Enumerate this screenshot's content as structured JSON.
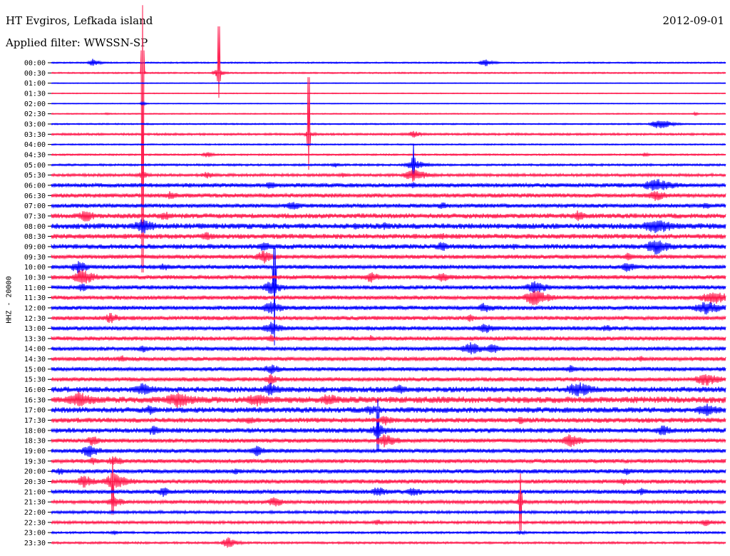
{
  "header": {
    "station": "HT Evgiros, Lefkada island",
    "date": "2012-09-01",
    "filter": "Applied filter: WWSSN-SP"
  },
  "chart_data": {
    "type": "line",
    "ylabel": "HHZ - 20000",
    "colors": [
      "#0000ff",
      "#ff1a4d"
    ],
    "tick_labels": [
      "00:00",
      "00:30",
      "01:00",
      "01:30",
      "02:00",
      "02:30",
      "03:00",
      "03:30",
      "04:00",
      "04:30",
      "05:00",
      "05:30",
      "06:00",
      "06:30",
      "07:00",
      "07:30",
      "08:00",
      "08:30",
      "09:00",
      "09:30",
      "10:00",
      "10:30",
      "11:00",
      "11:30",
      "12:00",
      "12:30",
      "13:00",
      "13:30",
      "14:00",
      "14:30",
      "15:00",
      "15:30",
      "16:00",
      "16:30",
      "17:00",
      "17:30",
      "18:00",
      "18:30",
      "19:00",
      "19:30",
      "20:00",
      "20:30",
      "21:00",
      "21:30",
      "22:00",
      "22:30",
      "23:00",
      "23:30"
    ],
    "noise_amplitude": [
      1,
      1,
      0.6,
      0.6,
      0.6,
      0.8,
      1,
      1.5,
      1,
      1.2,
      1.5,
      2,
      3,
      3,
      3,
      3.5,
      4,
      3.5,
      3.5,
      3,
      3,
      3,
      3,
      3,
      3,
      3,
      3,
      3,
      3,
      3,
      3,
      3,
      4,
      4.5,
      4,
      3.5,
      3.5,
      3,
      3,
      3,
      3,
      3,
      3,
      2.5,
      2,
      2,
      1.5,
      1.5
    ],
    "events": [
      [
        [
          130,
          6,
          10
        ],
        [
          680,
          6,
          12
        ]
      ],
      [
        [
          305,
          6,
          10
        ],
        [
          200,
          3,
          6
        ]
      ],
      [],
      [],
      [
        [
          200,
          3,
          6
        ]
      ],
      [
        [
          150,
          2,
          5
        ],
        [
          975,
          3,
          4
        ]
      ],
      [
        [
          925,
          8,
          18
        ]
      ],
      [
        [
          433,
          5,
          10
        ],
        [
          580,
          5,
          14
        ]
      ],
      [],
      [
        [
          290,
          5,
          10
        ],
        [
          905,
          4,
          6
        ]
      ],
      [
        [
          580,
          8,
          18
        ],
        [
          470,
          4,
          8
        ]
      ],
      [
        [
          580,
          10,
          20
        ],
        [
          200,
          6,
          12
        ],
        [
          290,
          6,
          12
        ],
        [
          480,
          4,
          10
        ]
      ],
      [
        [
          380,
          7,
          12
        ],
        [
          580,
          5,
          10
        ],
        [
          920,
          10,
          30
        ]
      ],
      [
        [
          240,
          7,
          14
        ],
        [
          920,
          8,
          20
        ]
      ],
      [
        [
          410,
          8,
          14
        ],
        [
          620,
          6,
          12
        ],
        [
          990,
          6,
          12
        ]
      ],
      [
        [
          120,
          10,
          16
        ],
        [
          230,
          8,
          14
        ],
        [
          810,
          8,
          16
        ]
      ],
      [
        [
          200,
          12,
          20
        ],
        [
          500,
          6,
          12
        ],
        [
          540,
          6,
          12
        ],
        [
          920,
          12,
          30
        ]
      ],
      [
        [
          290,
          7,
          14
        ],
        [
          620,
          6,
          12
        ]
      ],
      [
        [
          370,
          8,
          14
        ],
        [
          620,
          8,
          14
        ],
        [
          720,
          5,
          10
        ],
        [
          920,
          12,
          24
        ]
      ],
      [
        [
          370,
          10,
          18
        ],
        [
          880,
          6,
          12
        ]
      ],
      [
        [
          110,
          10,
          16
        ],
        [
          230,
          6,
          12
        ],
        [
          880,
          8,
          14
        ]
      ],
      [
        [
          115,
          12,
          22
        ],
        [
          520,
          8,
          16
        ],
        [
          620,
          8,
          16
        ]
      ],
      [
        [
          115,
          7,
          12
        ],
        [
          380,
          10,
          20
        ],
        [
          750,
          10,
          20
        ]
      ],
      [
        [
          320,
          4,
          8
        ],
        [
          750,
          12,
          24
        ],
        [
          1000,
          10,
          30
        ]
      ],
      [
        [
          380,
          10,
          20
        ],
        [
          680,
          8,
          16
        ],
        [
          990,
          10,
          30
        ]
      ],
      [
        [
          155,
          8,
          16
        ],
        [
          660,
          6,
          12
        ]
      ],
      [
        [
          380,
          10,
          18
        ],
        [
          680,
          8,
          16
        ],
        [
          850,
          6,
          12
        ]
      ],
      [
        [
          380,
          6,
          12
        ],
        [
          520,
          5,
          10
        ]
      ],
      [
        [
          200,
          6,
          12
        ],
        [
          660,
          10,
          20
        ],
        [
          690,
          8,
          16
        ]
      ],
      [
        [
          170,
          6,
          12
        ],
        [
          900,
          5,
          10
        ]
      ],
      [
        [
          380,
          8,
          16
        ],
        [
          800,
          6,
          12
        ]
      ],
      [
        [
          380,
          8,
          14
        ],
        [
          990,
          10,
          24
        ]
      ],
      [
        [
          200,
          10,
          22
        ],
        [
          380,
          10,
          20
        ],
        [
          560,
          8,
          16
        ],
        [
          810,
          12,
          26
        ]
      ],
      [
        [
          110,
          12,
          30
        ],
        [
          250,
          12,
          30
        ],
        [
          360,
          10,
          26
        ],
        [
          460,
          10,
          20
        ]
      ],
      [
        [
          210,
          8,
          14
        ],
        [
          520,
          8,
          16
        ],
        [
          990,
          10,
          24
        ]
      ],
      [
        [
          350,
          6,
          12
        ],
        [
          540,
          8,
          16
        ],
        [
          730,
          6,
          12
        ]
      ],
      [
        [
          215,
          8,
          16
        ],
        [
          530,
          10,
          20
        ],
        [
          930,
          8,
          18
        ]
      ],
      [
        [
          130,
          8,
          16
        ],
        [
          540,
          10,
          20
        ],
        [
          800,
          10,
          20
        ]
      ],
      [
        [
          125,
          10,
          18
        ],
        [
          360,
          8,
          16
        ]
      ],
      [
        [
          130,
          6,
          12
        ],
        [
          160,
          8,
          16
        ]
      ],
      [
        [
          85,
          6,
          12
        ],
        [
          330,
          5,
          10
        ],
        [
          880,
          6,
          12
        ]
      ],
      [
        [
          118,
          10,
          18
        ],
        [
          160,
          12,
          24
        ],
        [
          875,
          6,
          12
        ]
      ],
      [
        [
          230,
          8,
          14
        ],
        [
          530,
          8,
          16
        ],
        [
          580,
          8,
          16
        ],
        [
          900,
          6,
          12
        ]
      ],
      [
        [
          160,
          8,
          16
        ],
        [
          385,
          8,
          16
        ],
        [
          730,
          6,
          12
        ]
      ],
      [],
      [
        [
          530,
          5,
          10
        ],
        [
          990,
          6,
          12
        ]
      ],
      [
        [
          160,
          4,
          8
        ],
        [
          730,
          4,
          8
        ]
      ],
      [
        [
          320,
          8,
          14
        ]
      ]
    ],
    "big_events": [
      {
        "row": 1,
        "x": 200,
        "up": 95,
        "down": 420
      },
      {
        "row": 1,
        "x": 307,
        "up": 98,
        "down": 35
      },
      {
        "row": 7,
        "x": 433,
        "up": 120,
        "down": 50
      },
      {
        "row": 10,
        "x": 580,
        "up": 30,
        "down": 30
      },
      {
        "row": 20,
        "x": 385,
        "up": 40,
        "down": 110
      },
      {
        "row": 34,
        "x": 530,
        "up": 15,
        "down": 85
      },
      {
        "row": 41,
        "x": 158,
        "up": 35,
        "down": 70
      },
      {
        "row": 43,
        "x": 730,
        "up": 40,
        "down": 60
      }
    ]
  }
}
